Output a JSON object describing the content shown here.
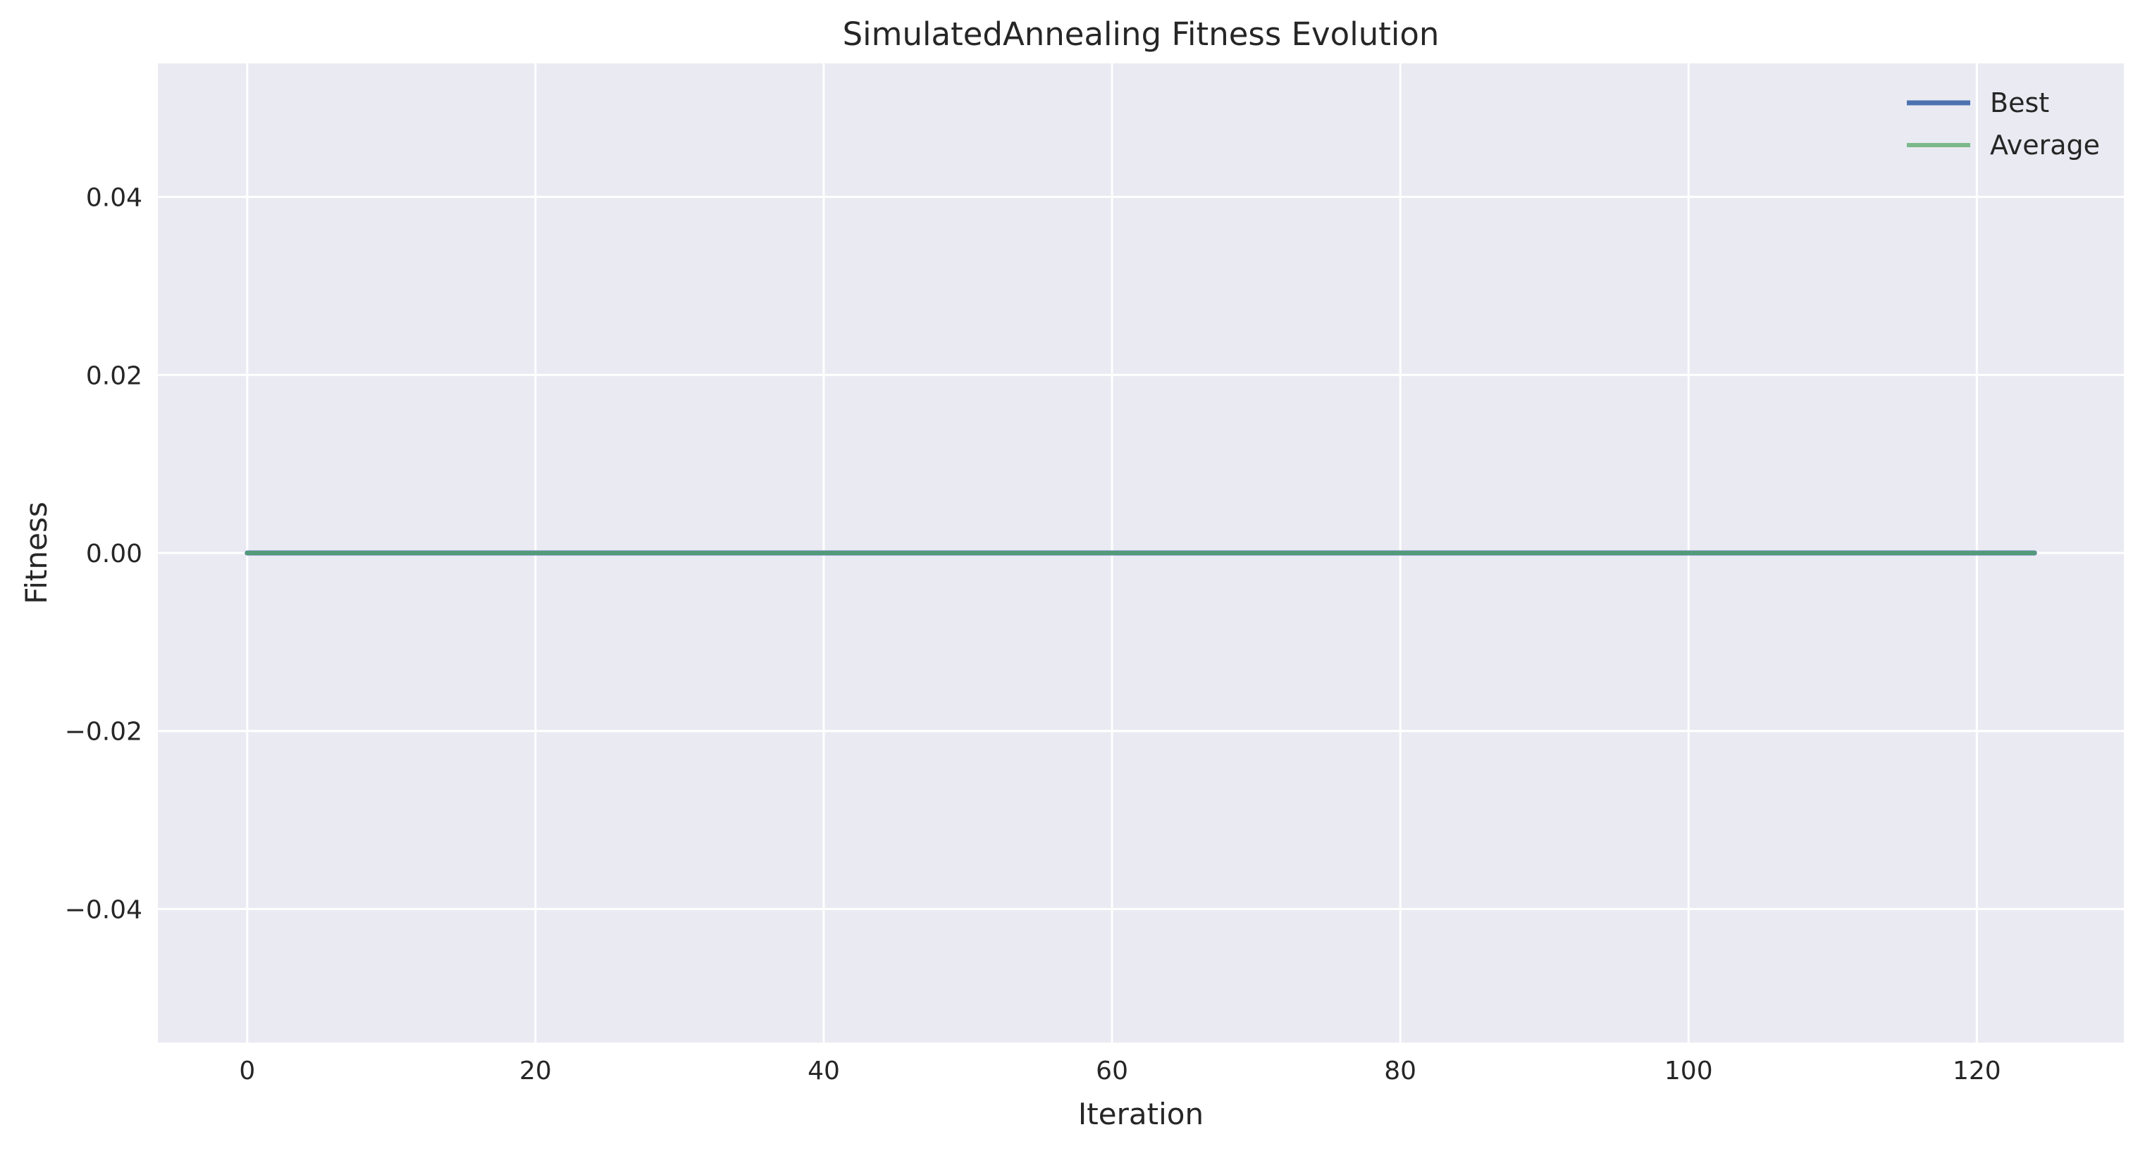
{
  "chart_data": {
    "type": "line",
    "title": "SimulatedAnnealing Fitness Evolution",
    "xlabel": "Iteration",
    "ylabel": "Fitness",
    "xlim": [
      -6.2,
      130.2
    ],
    "ylim": [
      -0.055,
      0.055
    ],
    "xticks": [
      0,
      20,
      40,
      60,
      80,
      100,
      120
    ],
    "xtick_labels": [
      "0",
      "20",
      "40",
      "60",
      "80",
      "100",
      "120"
    ],
    "yticks": [
      -0.04,
      -0.02,
      0.0,
      0.02,
      0.04
    ],
    "ytick_labels": [
      "−0.04",
      "−0.02",
      "0.00",
      "0.02",
      "0.04"
    ],
    "grid": true,
    "legend_position": "top-right",
    "x": [
      0,
      124
    ],
    "series": [
      {
        "name": "Best",
        "values": [
          0,
          0
        ],
        "color": "#4c72b0"
      },
      {
        "name": "Average",
        "values": [
          0,
          0
        ],
        "color": "#55a868"
      }
    ],
    "colors": {
      "background": "#eaeaf2",
      "grid": "#ffffff"
    }
  }
}
